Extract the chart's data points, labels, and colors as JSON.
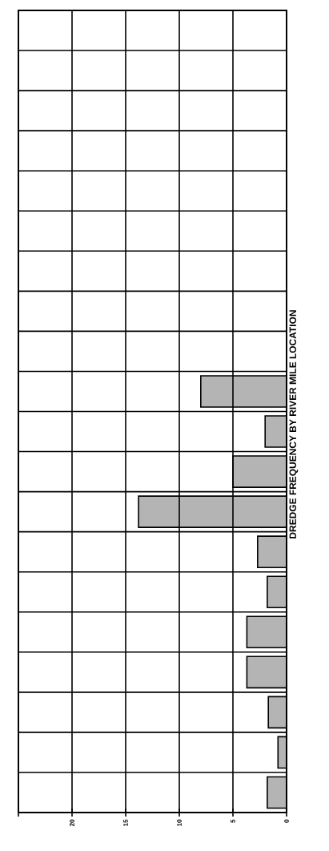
{
  "chart_data": {
    "type": "bar",
    "orientation": "horizontal",
    "title": "DREDGE FREQUENCY BY RIVER MILE LOCATION",
    "categories": [
      null,
      null,
      null,
      null,
      null,
      null,
      null,
      null,
      null,
      null,
      null,
      null,
      null,
      null,
      null,
      null,
      null,
      null,
      null,
      null
    ],
    "values": [
      null,
      null,
      null,
      null,
      null,
      null,
      null,
      null,
      null,
      8.0,
      2.0,
      5.0,
      13.8,
      2.7,
      1.8,
      3.7,
      3.7,
      1.7,
      0.8,
      1.8
    ],
    "color": "#b4b4b4",
    "xlim": [
      25,
      0
    ],
    "xticks": [
      0,
      5,
      10,
      15,
      20,
      {
        "value": 25,
        "label": null
      }
    ],
    "grid": true
  }
}
